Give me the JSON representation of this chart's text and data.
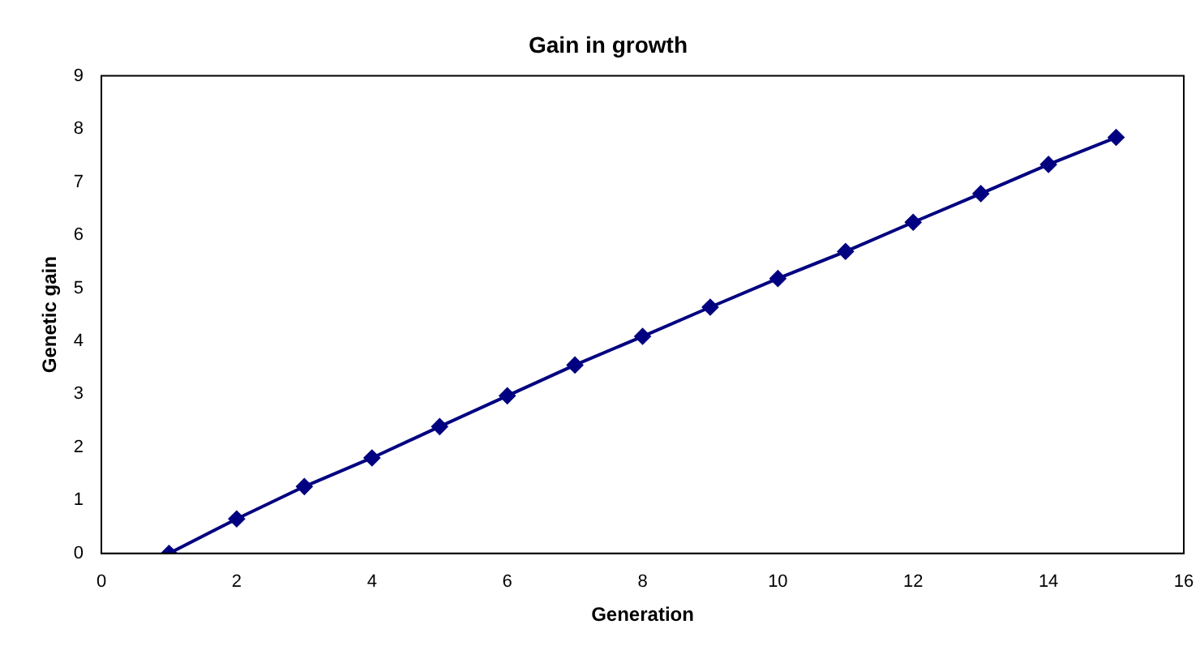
{
  "chart_data": {
    "type": "line",
    "title": "Gain in growth",
    "xlabel": "Generation",
    "ylabel": "Genetic gain",
    "x": [
      1,
      2,
      3,
      4,
      5,
      6,
      7,
      8,
      9,
      10,
      11,
      12,
      13,
      14,
      15
    ],
    "series": [
      {
        "color": "#000080",
        "values": [
          0,
          0.65,
          1.26,
          1.8,
          2.39,
          2.97,
          3.55,
          4.09,
          4.64,
          5.18,
          5.69,
          6.24,
          6.78,
          7.33,
          7.84
        ]
      }
    ],
    "xlim": [
      0,
      16
    ],
    "xticks": [
      0,
      2,
      4,
      6,
      8,
      10,
      12,
      14,
      16
    ],
    "ylim": [
      0,
      9
    ],
    "yticks": [
      0,
      1,
      2,
      3,
      4,
      5,
      6,
      7,
      8,
      9
    ],
    "grid": false,
    "legend": false,
    "marker": "diamond",
    "line_style": "solid"
  }
}
